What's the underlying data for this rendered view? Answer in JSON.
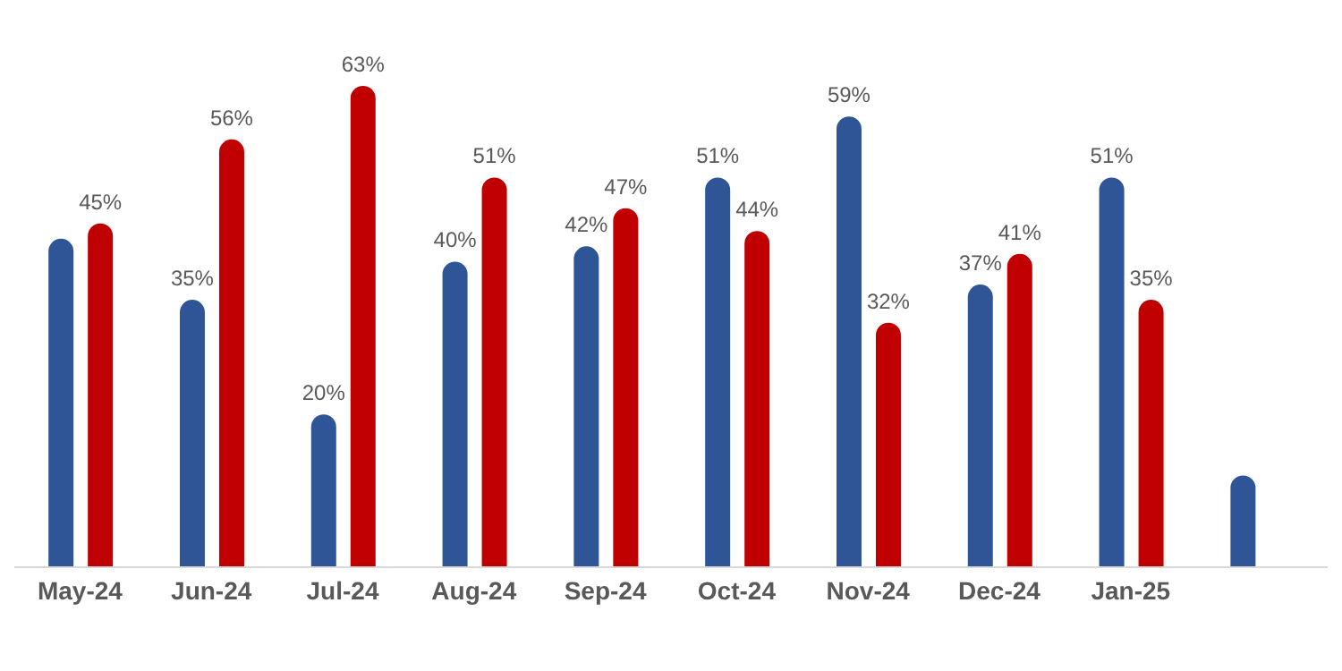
{
  "chart_data": {
    "type": "bar",
    "categories": [
      "May-24",
      "Jun-24",
      "Jul-24",
      "Aug-24",
      "Sep-24",
      "Oct-24",
      "Nov-24",
      "Dec-24",
      "Jan-25",
      null
    ],
    "series": [
      {
        "color": "#2f5597",
        "values": [
          43,
          35,
          20,
          40,
          42,
          51,
          59,
          37,
          51,
          12
        ],
        "value_labels": [
          null,
          "35%",
          "20%",
          "40%",
          "42%",
          "51%",
          "59%",
          "37%",
          "51%",
          null
        ]
      },
      {
        "color": "#c00000",
        "values": [
          45,
          56,
          63,
          51,
          47,
          44,
          32,
          41,
          35,
          null
        ],
        "value_labels": [
          "45%",
          "56%",
          "63%",
          "51%",
          "47%",
          "44%",
          "32%",
          "41%",
          "35%",
          null
        ]
      }
    ]
  }
}
